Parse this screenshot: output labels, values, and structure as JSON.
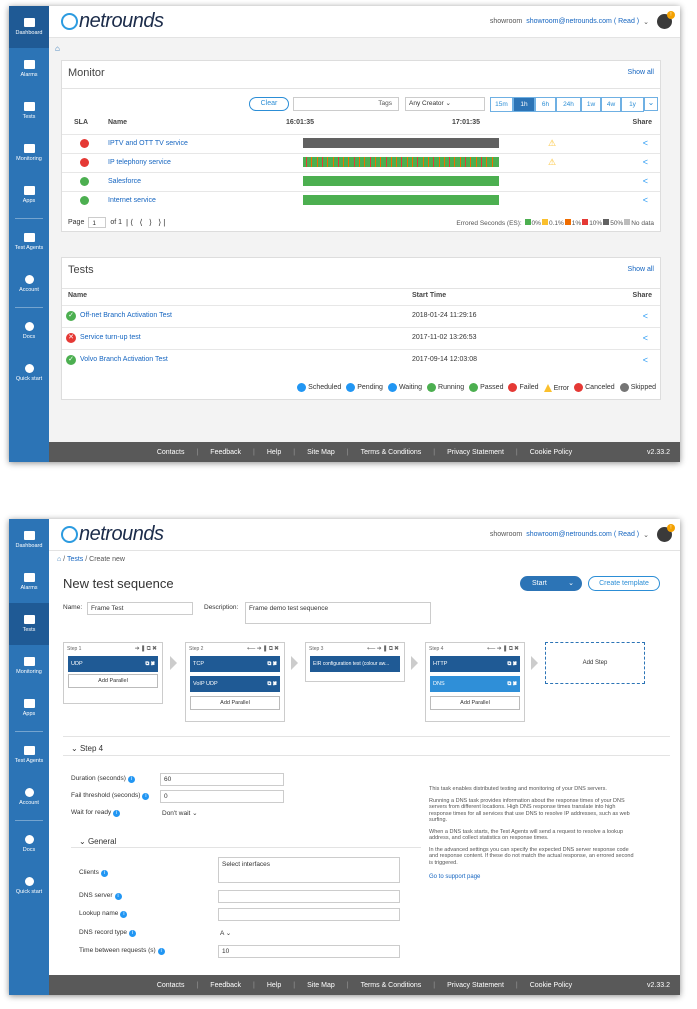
{
  "app": {
    "brand": "netrounds",
    "user_short": "showroom",
    "user_email": "showroom@netrounds.com ( Read )",
    "notification_count": "!"
  },
  "sidebar": {
    "items": [
      {
        "label": "Dashboard",
        "icon": "dashboard-icon"
      },
      {
        "label": "Alarms",
        "icon": "bell-icon"
      },
      {
        "label": "Tests",
        "icon": "tests-icon"
      },
      {
        "label": "Monitoring",
        "icon": "monitoring-icon"
      },
      {
        "label": "Apps",
        "icon": "apps-icon"
      },
      {
        "label": "Test Agents",
        "icon": "test-agents-icon"
      },
      {
        "label": "Account",
        "icon": "gear-icon"
      },
      {
        "label": "Docs",
        "icon": "docs-icon"
      },
      {
        "label": "Quick start",
        "icon": "quick-start-icon"
      }
    ]
  },
  "footer": {
    "items": [
      "Contacts",
      "Feedback",
      "Help",
      "Site Map",
      "Terms & Conditions",
      "Privacy Statement",
      "Cookie Policy"
    ],
    "version": "v2.33.2"
  },
  "monitor": {
    "title": "Monitor",
    "show_all": "Show all",
    "clear": "Clear",
    "tags": "Tags",
    "creator": "Any Creator",
    "ranges": [
      "15m",
      "1h",
      "6h",
      "24h",
      "1w",
      "4w",
      "1y"
    ],
    "active_range": "1h",
    "headers": {
      "sla": "SLA",
      "name": "Name",
      "t1": "16:01:35",
      "t2": "17:01:35",
      "share": "Share"
    },
    "rows": [
      {
        "name": "IPTV and OTT TV service",
        "sla": "#e53935",
        "bar": "gray",
        "warn": true
      },
      {
        "name": "IP telephony service",
        "sla": "#e53935",
        "bar": "mixed",
        "warn": true
      },
      {
        "name": "Salesforce",
        "sla": "#4caf50",
        "bar": "green",
        "warn": false
      },
      {
        "name": "Internet service",
        "sla": "#4caf50",
        "bar": "green",
        "warn": false
      }
    ],
    "pager": {
      "label": "Page",
      "page": "1",
      "of": "of 1"
    },
    "es_label": "Errored Seconds (ES):",
    "es_legend": [
      {
        "label": "0%",
        "color": "#4caf50"
      },
      {
        "label": "0.1%",
        "color": "#fbc02d"
      },
      {
        "label": "1%",
        "color": "#ef6c00"
      },
      {
        "label": "10%",
        "color": "#e53935"
      },
      {
        "label": "50%",
        "color": "#616161"
      },
      {
        "label": "No data",
        "color": "#bdbdbd"
      }
    ]
  },
  "tests": {
    "title": "Tests",
    "show_all": "Show all",
    "headers": {
      "name": "Name",
      "start": "Start Time",
      "share": "Share"
    },
    "rows": [
      {
        "name": "Off-net Branch Activation Test",
        "start": "2018-01-24 11:29:16",
        "status": "passed"
      },
      {
        "name": "Service turn-up test",
        "start": "2017-11-02 13:26:53",
        "status": "failed"
      },
      {
        "name": "Volvo Branch Activation Test",
        "start": "2017-09-14 12:03:08",
        "status": "passed"
      }
    ],
    "legend": [
      {
        "label": "Scheduled",
        "color": "#2196f3"
      },
      {
        "label": "Pending",
        "color": "#2196f3"
      },
      {
        "label": "Waiting",
        "color": "#2196f3"
      },
      {
        "label": "Running",
        "color": "#4caf50"
      },
      {
        "label": "Passed",
        "color": "#4caf50"
      },
      {
        "label": "Failed",
        "color": "#e53935"
      },
      {
        "label": "Error",
        "color": "#fbc02d"
      },
      {
        "label": "Canceled",
        "color": "#e53935"
      },
      {
        "label": "Skipped",
        "color": "#757575"
      }
    ]
  },
  "new_seq": {
    "breadcrumb": [
      "Tests",
      "Create new"
    ],
    "title": "New test sequence",
    "start": "Start",
    "create_template": "Create template",
    "name_label": "Name:",
    "name_value": "Frame Test",
    "desc_label": "Description:",
    "desc_value": "Frame demo test sequence",
    "steps": [
      {
        "header": "Step 1",
        "blocks": [
          "UDP"
        ]
      },
      {
        "header": "Step 2",
        "blocks": [
          "TCP",
          "VoIP UDP"
        ]
      },
      {
        "header": "Step 3",
        "blocks": [
          "EIR configuration test (colour aw..."
        ]
      },
      {
        "header": "Step 4",
        "blocks": [
          "HTTP",
          "DNS"
        ]
      }
    ],
    "add_parallel": "Add Parallel",
    "add_step": "Add Step",
    "section": "Step 4",
    "duration_label": "Duration (seconds)",
    "duration": "60",
    "fail_label": "Fail threshold (seconds)",
    "fail": "0",
    "wait_label": "Wait for ready",
    "wait": "Don't wait",
    "general": "General",
    "clients_label": "Clients",
    "clients": "Select interfaces",
    "dns_server_label": "DNS server",
    "lookup_label": "Lookup name",
    "record_label": "DNS record type",
    "record": "A",
    "between_label": "Time between requests (s)",
    "between": "10",
    "desc_paras": [
      "This task enables distributed testing and monitoring of your DNS servers.",
      "Running a DNS task provides information about the response times of your DNS servers from different locations. High DNS response times translate into high response times for all services that use DNS to resolve IP addresses, such as web surfing.",
      "When a DNS task starts, the Test Agents will send a request to resolve a lookup address, and collect statistics on response times.",
      "In the advanced settings you can specify the expected DNS server response code and response content. If these do not match the actual response, an errored second is triggered."
    ],
    "support": "Go to support page"
  }
}
